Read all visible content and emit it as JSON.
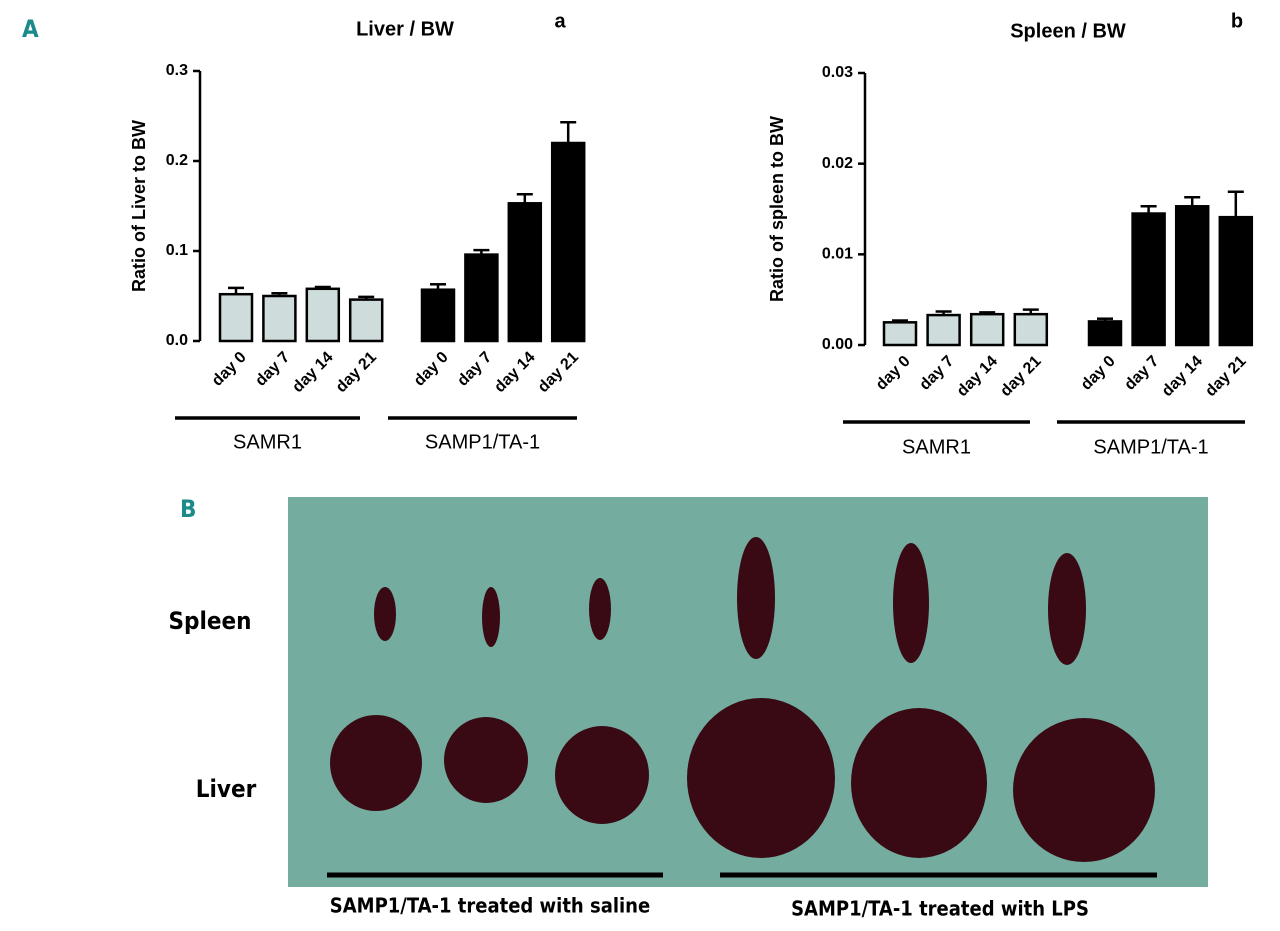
{
  "panel_labels": [
    "A",
    "B"
  ],
  "chart_data": [
    {
      "type": "bar",
      "title": "Liver / BW",
      "label": "a",
      "ylabel": "Ratio of Liver to BW",
      "ylim": [
        0,
        0.3
      ],
      "yticks": [
        {
          "value": 0,
          "label": "0.0"
        },
        0.1,
        0.2,
        0.3
      ],
      "groups": [
        {
          "name": "SAMR1",
          "color": "#cfdcdc",
          "categories": [
            "day 0",
            "day 7",
            "day 14",
            "day 21"
          ],
          "values": [
            0.052,
            0.05,
            0.058,
            0.046
          ],
          "errors": [
            0.007,
            0.003,
            0.002,
            0.003
          ]
        },
        {
          "name": "SAMP1/TA-1",
          "color": "#000000",
          "categories": [
            "day 0",
            "day 7",
            "day 14",
            "day 21"
          ],
          "values": [
            0.057,
            0.096,
            0.153,
            0.22
          ],
          "errors": [
            0.006,
            0.005,
            0.01,
            0.023
          ]
        }
      ]
    },
    {
      "type": "bar",
      "title": "Spleen / BW",
      "label": "b",
      "ylabel": "Ratio of spleen to BW",
      "ylim": [
        0,
        0.03
      ],
      "yticks": [
        {
          "value": 0,
          "label": "0.00"
        },
        {
          "value": 0.01,
          "label": "0.01"
        },
        {
          "value": 0.02,
          "label": "0.02"
        },
        {
          "value": 0.03,
          "label": "0.03"
        }
      ],
      "groups": [
        {
          "name": "SAMR1",
          "color": "#cfdcdc",
          "categories": [
            "day 0",
            "day 7",
            "day 14",
            "day 21"
          ],
          "values": [
            0.0025,
            0.0033,
            0.0034,
            0.0034
          ],
          "errors": [
            0.0002,
            0.0004,
            0.0002,
            0.0005
          ]
        },
        {
          "name": "SAMP1/TA-1",
          "color": "#000000",
          "categories": [
            "day 0",
            "day 7",
            "day 14",
            "day 21"
          ],
          "values": [
            0.0026,
            0.0145,
            0.0153,
            0.0141
          ],
          "errors": [
            0.0003,
            0.0008,
            0.001,
            0.0028
          ]
        }
      ]
    }
  ],
  "photo": {
    "row_labels": [
      "Spleen",
      "Liver"
    ],
    "group_labels": [
      "SAMP1/TA-1 treated with saline",
      "SAMP1/TA-1 treated with LPS"
    ]
  }
}
